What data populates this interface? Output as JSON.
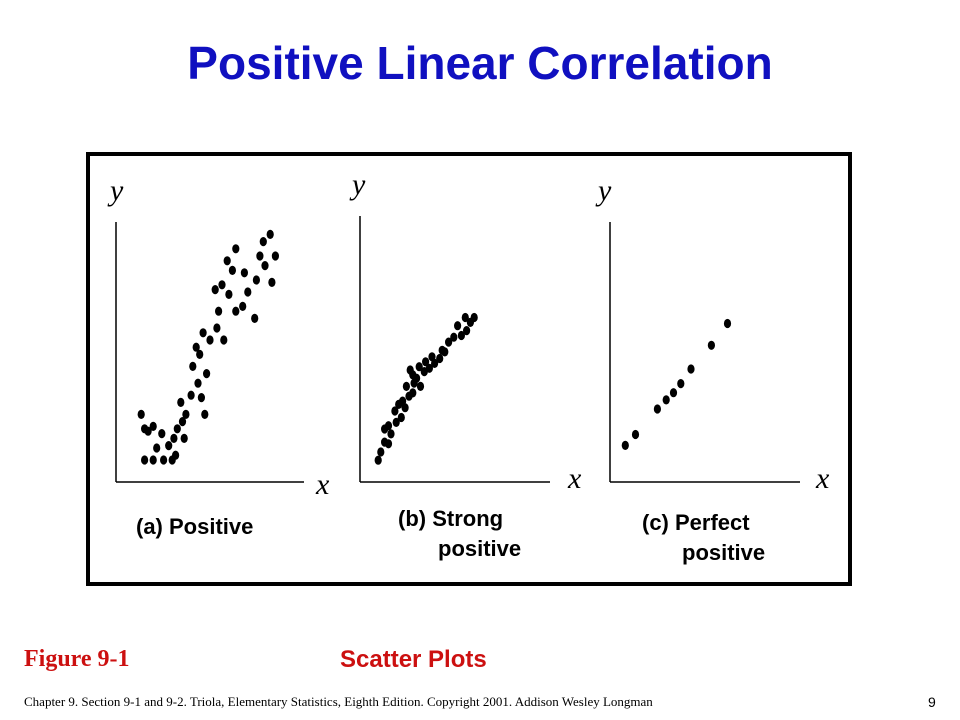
{
  "title": "Positive Linear Correlation",
  "figure_label": "Figure 9-1",
  "figure_subtitle": "Scatter Plots",
  "footer": "Chapter 9.  Section 9-1 and 9-2.  Triola, Elementary Statistics, Eighth Edition. Copyright  2001.  Addison Wesley Longman",
  "page_number": "9",
  "colors": {
    "title": "#1010c0",
    "figure_label": "#cc1010",
    "points": "#000000"
  },
  "chart_data": [
    {
      "type": "scatter",
      "xlabel": "x",
      "ylabel": "y",
      "caption": [
        "(a) Positive"
      ],
      "xlim": [
        0,
        100
      ],
      "ylim": [
        0,
        100
      ],
      "grid": false,
      "points": [
        [
          10,
          24
        ],
        [
          12,
          18
        ],
        [
          14,
          17
        ],
        [
          17,
          19
        ],
        [
          22,
          16
        ],
        [
          19,
          10
        ],
        [
          12,
          5
        ],
        [
          17,
          5
        ],
        [
          23,
          5
        ],
        [
          28,
          5
        ],
        [
          30,
          7
        ],
        [
          26,
          11
        ],
        [
          29,
          14
        ],
        [
          35,
          14
        ],
        [
          34,
          21
        ],
        [
          31,
          18
        ],
        [
          36,
          24
        ],
        [
          33,
          29
        ],
        [
          39,
          32
        ],
        [
          45,
          31
        ],
        [
          47,
          24
        ],
        [
          43,
          37
        ],
        [
          48,
          41
        ],
        [
          40,
          44
        ],
        [
          42,
          52
        ],
        [
          46,
          58
        ],
        [
          50,
          55
        ],
        [
          54,
          60
        ],
        [
          55,
          67
        ],
        [
          53,
          76
        ],
        [
          57,
          78
        ],
        [
          61,
          74
        ],
        [
          63,
          84
        ],
        [
          60,
          88
        ],
        [
          65,
          93
        ],
        [
          70,
          83
        ],
        [
          72,
          75
        ],
        [
          77,
          80
        ],
        [
          79,
          90
        ],
        [
          81,
          96
        ],
        [
          82,
          86
        ],
        [
          86,
          79
        ],
        [
          88,
          90
        ],
        [
          85,
          99
        ],
        [
          76,
          64
        ],
        [
          65,
          67
        ],
        [
          58,
          55
        ],
        [
          69,
          69
        ],
        [
          44,
          49
        ]
      ]
    },
    {
      "type": "scatter",
      "xlabel": "x",
      "ylabel": "y",
      "caption": [
        "(b) Strong",
        "positive"
      ],
      "xlim": [
        0,
        100
      ],
      "ylim": [
        0,
        100
      ],
      "grid": false,
      "points": [
        [
          8,
          6
        ],
        [
          10,
          11
        ],
        [
          13,
          17
        ],
        [
          16,
          16
        ],
        [
          18,
          22
        ],
        [
          13,
          25
        ],
        [
          16,
          27
        ],
        [
          22,
          29
        ],
        [
          26,
          32
        ],
        [
          21,
          36
        ],
        [
          29,
          38
        ],
        [
          27,
          42
        ],
        [
          32,
          45
        ],
        [
          35,
          47
        ],
        [
          30,
          51
        ],
        [
          36,
          53
        ],
        [
          41,
          51
        ],
        [
          38,
          56
        ],
        [
          44,
          60
        ],
        [
          48,
          62
        ],
        [
          52,
          65
        ],
        [
          56,
          68
        ],
        [
          60,
          72
        ],
        [
          63,
          78
        ],
        [
          67,
          81
        ],
        [
          73,
          82
        ],
        [
          77,
          85
        ],
        [
          80,
          90
        ],
        [
          76,
          93
        ],
        [
          83,
          93
        ],
        [
          70,
          88
        ],
        [
          35,
          58
        ],
        [
          45,
          66
        ],
        [
          40,
          63
        ],
        [
          50,
          69
        ],
        [
          58,
          73
        ],
        [
          24,
          40
        ],
        [
          33,
          61
        ]
      ]
    },
    {
      "type": "scatter",
      "xlabel": "x",
      "ylabel": "y",
      "caption": [
        "(c) Perfect",
        "positive"
      ],
      "xlim": [
        0,
        100
      ],
      "ylim": [
        0,
        100
      ],
      "grid": false,
      "points": [
        [
          5,
          8
        ],
        [
          12,
          14
        ],
        [
          27,
          28
        ],
        [
          33,
          33
        ],
        [
          38,
          37
        ],
        [
          43,
          42
        ],
        [
          50,
          50
        ],
        [
          64,
          63
        ],
        [
          75,
          75
        ]
      ]
    }
  ]
}
